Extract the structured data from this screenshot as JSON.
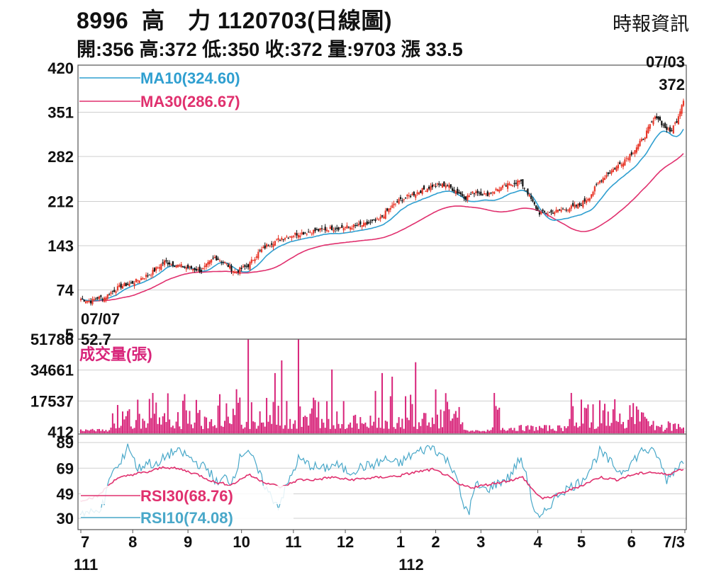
{
  "header": {
    "title": "8996  高　力 1120703(日線圖)",
    "source": "時報資訊",
    "ohlc": "開:356 高:372 低:350 收:372 量:9703 漲 33.5"
  },
  "colors": {
    "up": "#e8382a",
    "down": "#111111",
    "ma10": "#2f9fd0",
    "ma30": "#e0306e",
    "volume": "#d8247a",
    "rsi30": "#e0306e",
    "rsi10": "#49a8c9",
    "grid": "#cfcfcf",
    "frame": "#555555"
  },
  "chart_data": [
    {
      "type": "candlestick",
      "y_ticks": [
        "420",
        "351",
        "282",
        "212",
        "143",
        "74",
        "5"
      ],
      "ylim": [
        5,
        420
      ],
      "grid": true,
      "legend": [
        {
          "label": "MA10(324.60)",
          "color": "#2f9fd0"
        },
        {
          "label": "MA30(286.67)",
          "color": "#e0306e"
        }
      ],
      "annotations": {
        "high_date": "07/03",
        "high_value": "372",
        "low_date": "07/07",
        "low_value": "52.7"
      },
      "close_anchors": [
        [
          0,
          60
        ],
        [
          6,
          56
        ],
        [
          10,
          62
        ],
        [
          14,
          62
        ],
        [
          18,
          70
        ],
        [
          24,
          80
        ],
        [
          30,
          84
        ],
        [
          36,
          92
        ],
        [
          42,
          100
        ],
        [
          50,
          118
        ],
        [
          58,
          112
        ],
        [
          66,
          108
        ],
        [
          72,
          104
        ],
        [
          80,
          125
        ],
        [
          86,
          116
        ],
        [
          92,
          102
        ],
        [
          100,
          112
        ],
        [
          106,
          132
        ],
        [
          112,
          145
        ],
        [
          120,
          155
        ],
        [
          130,
          162
        ],
        [
          140,
          166
        ],
        [
          150,
          170
        ],
        [
          160,
          172
        ],
        [
          170,
          176
        ],
        [
          178,
          183
        ],
        [
          184,
          200
        ],
        [
          190,
          213
        ],
        [
          200,
          225
        ],
        [
          210,
          236
        ],
        [
          218,
          238
        ],
        [
          224,
          228
        ],
        [
          230,
          218
        ],
        [
          236,
          228
        ],
        [
          242,
          222
        ],
        [
          248,
          230
        ],
        [
          256,
          238
        ],
        [
          262,
          244
        ],
        [
          266,
          230
        ],
        [
          270,
          210
        ],
        [
          274,
          194
        ],
        [
          280,
          194
        ],
        [
          286,
          198
        ],
        [
          292,
          202
        ],
        [
          298,
          206
        ],
        [
          304,
          220
        ],
        [
          310,
          244
        ],
        [
          316,
          258
        ],
        [
          322,
          270
        ],
        [
          330,
          290
        ],
        [
          336,
          310
        ],
        [
          340,
          330
        ],
        [
          344,
          345
        ],
        [
          348,
          330
        ],
        [
          352,
          320
        ],
        [
          356,
          338
        ],
        [
          360,
          372
        ]
      ],
      "ma10_last": 324.6,
      "ma30_last": 286.67
    },
    {
      "type": "bar",
      "title": "成交量(張)",
      "y_ticks": [
        "51786",
        "34661",
        "17537",
        "412"
      ],
      "ylim": [
        412,
        51786
      ],
      "spikes": [
        [
          100,
          55000
        ],
        [
          130,
          54000
        ],
        [
          200,
          39000
        ],
        [
          120,
          40000
        ],
        [
          116,
          33000
        ],
        [
          180,
          33000
        ],
        [
          186,
          31000
        ],
        [
          150,
          35000
        ]
      ]
    },
    {
      "type": "line",
      "y_ticks": [
        "89",
        "69",
        "49",
        "30"
      ],
      "ylim": [
        30,
        89
      ],
      "series": [
        {
          "name": "RSI30(68.76)",
          "color": "#e0306e"
        },
        {
          "name": "RSI10(74.08)",
          "color": "#49a8c9"
        }
      ],
      "rsi10_anchors": [
        [
          0,
          35
        ],
        [
          8,
          34
        ],
        [
          14,
          42
        ],
        [
          18,
          65
        ],
        [
          24,
          72
        ],
        [
          28,
          88
        ],
        [
          34,
          68
        ],
        [
          40,
          74
        ],
        [
          46,
          70
        ],
        [
          50,
          78
        ],
        [
          56,
          82
        ],
        [
          62,
          80
        ],
        [
          68,
          74
        ],
        [
          76,
          68
        ],
        [
          82,
          56
        ],
        [
          86,
          62
        ],
        [
          90,
          58
        ],
        [
          96,
          80
        ],
        [
          100,
          84
        ],
        [
          106,
          66
        ],
        [
          112,
          50
        ],
        [
          118,
          40
        ],
        [
          124,
          58
        ],
        [
          130,
          76
        ],
        [
          136,
          72
        ],
        [
          144,
          68
        ],
        [
          152,
          72
        ],
        [
          160,
          66
        ],
        [
          168,
          70
        ],
        [
          176,
          72
        ],
        [
          182,
          76
        ],
        [
          190,
          72
        ],
        [
          196,
          78
        ],
        [
          202,
          82
        ],
        [
          210,
          86
        ],
        [
          218,
          76
        ],
        [
          224,
          66
        ],
        [
          228,
          40
        ],
        [
          232,
          36
        ],
        [
          236,
          56
        ],
        [
          242,
          52
        ],
        [
          250,
          58
        ],
        [
          256,
          62
        ],
        [
          262,
          76
        ],
        [
          266,
          66
        ],
        [
          270,
          40
        ],
        [
          274,
          28
        ],
        [
          280,
          40
        ],
        [
          286,
          50
        ],
        [
          292,
          54
        ],
        [
          298,
          58
        ],
        [
          304,
          68
        ],
        [
          310,
          82
        ],
        [
          316,
          74
        ],
        [
          322,
          66
        ],
        [
          328,
          72
        ],
        [
          336,
          84
        ],
        [
          344,
          80
        ],
        [
          350,
          60
        ],
        [
          356,
          70
        ],
        [
          360,
          74
        ]
      ],
      "rsi30_anchors": [
        [
          0,
          44
        ],
        [
          10,
          47
        ],
        [
          20,
          60
        ],
        [
          30,
          64
        ],
        [
          40,
          66
        ],
        [
          50,
          70
        ],
        [
          60,
          68
        ],
        [
          70,
          64
        ],
        [
          80,
          58
        ],
        [
          90,
          56
        ],
        [
          100,
          64
        ],
        [
          110,
          58
        ],
        [
          120,
          54
        ],
        [
          130,
          60
        ],
        [
          140,
          60
        ],
        [
          150,
          62
        ],
        [
          160,
          60
        ],
        [
          170,
          61
        ],
        [
          180,
          62
        ],
        [
          190,
          63
        ],
        [
          200,
          66
        ],
        [
          210,
          68
        ],
        [
          218,
          64
        ],
        [
          226,
          56
        ],
        [
          234,
          54
        ],
        [
          242,
          56
        ],
        [
          250,
          58
        ],
        [
          258,
          60
        ],
        [
          264,
          62
        ],
        [
          270,
          52
        ],
        [
          276,
          45
        ],
        [
          284,
          48
        ],
        [
          292,
          52
        ],
        [
          300,
          56
        ],
        [
          310,
          62
        ],
        [
          320,
          60
        ],
        [
          330,
          64
        ],
        [
          340,
          66
        ],
        [
          350,
          64
        ],
        [
          360,
          68.76
        ]
      ]
    }
  ],
  "x_axis": {
    "months": [
      "7",
      "8",
      "9",
      "10",
      "11",
      "12",
      "1",
      "2",
      "3",
      "4",
      "5",
      "6",
      "7/3"
    ],
    "years": [
      "111",
      "112"
    ]
  }
}
